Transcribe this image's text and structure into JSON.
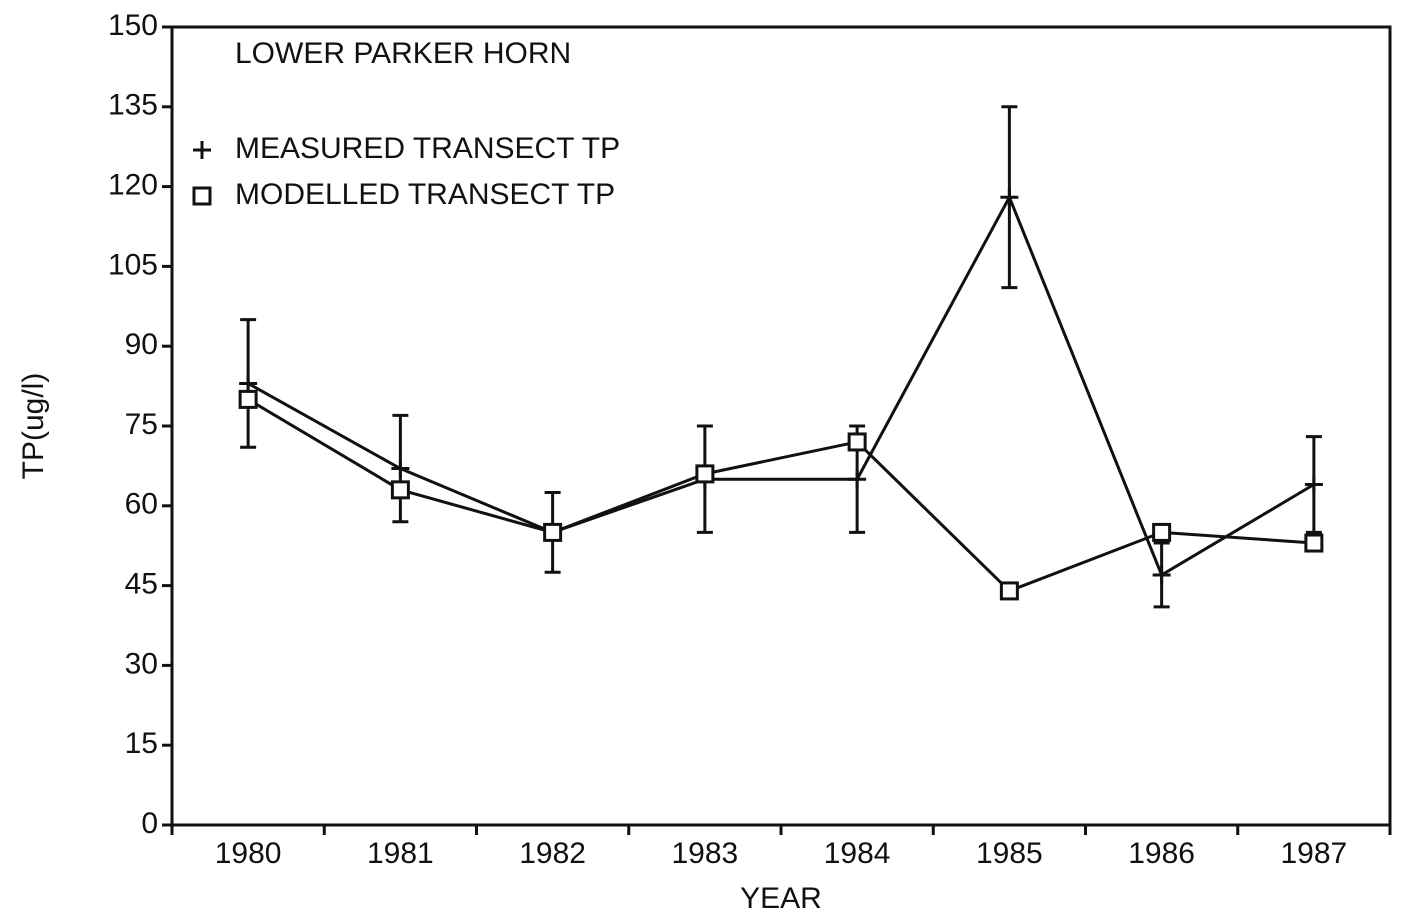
{
  "chart_data": {
    "type": "line",
    "title": "LOWER PARKER HORN",
    "x_label": "YEAR",
    "y_label": "TP(ug/l)",
    "categories": [
      "1980",
      "1981",
      "1982",
      "1983",
      "1984",
      "1985",
      "1986",
      "1987"
    ],
    "series": [
      {
        "name": "MEASURED TRANSECT TP",
        "color": "#111111",
        "marker": "plus",
        "values": [
          83,
          67,
          55,
          65,
          65,
          118,
          47,
          64
        ],
        "errors": [
          12,
          10,
          7.5,
          10,
          10,
          17,
          6,
          9
        ]
      },
      {
        "name": "MODELLED TRANSECT TP",
        "color": "#111111",
        "marker": "square",
        "values": [
          80,
          63,
          55,
          66,
          72,
          44,
          55,
          53
        ]
      }
    ],
    "ylim": [
      0,
      150
    ],
    "yticks": [
      0,
      15,
      30,
      45,
      60,
      75,
      90,
      105,
      120,
      135,
      150
    ],
    "grid": false,
    "legend": "upper left"
  }
}
